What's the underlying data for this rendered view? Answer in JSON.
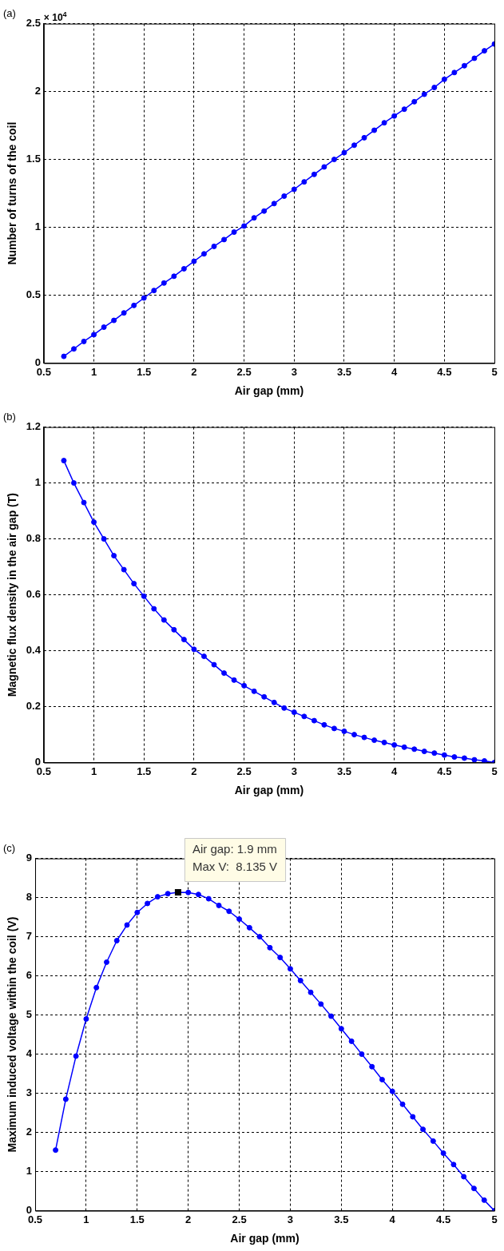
{
  "chart_data": [
    {
      "type": "line",
      "title": "(a)",
      "xlabel": "Air gap (mm)",
      "ylabel": "Number of turns of the coil",
      "annotations": [
        "× 10$^{4}$"
      ],
      "xlim": [
        0.5,
        5
      ],
      "xticks": [
        0.5,
        1,
        1.5,
        2,
        2.5,
        3,
        3.5,
        4,
        4.5,
        5
      ],
      "ylim": [
        0,
        2.5
      ],
      "yticks": [
        0,
        0.5,
        1,
        1.5,
        2,
        2.5
      ],
      "grid": true,
      "marker": "circle",
      "line_style": "solid",
      "legend": false,
      "x": [
        0.7,
        0.8,
        0.9,
        1.0,
        1.1,
        1.2,
        1.3,
        1.4,
        1.5,
        1.6,
        1.7,
        1.8,
        1.9,
        2.0,
        2.1,
        2.2,
        2.3,
        2.4,
        2.5,
        2.6,
        2.7,
        2.8,
        2.9,
        3.0,
        3.1,
        3.2,
        3.3,
        3.4,
        3.5,
        3.6,
        3.7,
        3.8,
        3.9,
        4.0,
        4.1,
        4.2,
        4.3,
        4.4,
        4.5,
        4.6,
        4.7,
        4.8,
        4.9,
        5.0
      ],
      "series": [
        {
          "color": "#0000ff",
          "values": [
            0.05,
            0.105,
            0.16,
            0.21,
            0.265,
            0.315,
            0.37,
            0.425,
            0.48,
            0.535,
            0.59,
            0.64,
            0.695,
            0.75,
            0.805,
            0.86,
            0.91,
            0.965,
            1.01,
            1.07,
            1.12,
            1.175,
            1.23,
            1.28,
            1.335,
            1.39,
            1.445,
            1.5,
            1.55,
            1.605,
            1.66,
            1.715,
            1.77,
            1.82,
            1.87,
            1.925,
            1.98,
            2.03,
            2.09,
            2.14,
            2.19,
            2.245,
            2.3,
            2.35
          ]
        }
      ]
    },
    {
      "type": "line",
      "title": "(b)",
      "xlabel": "Air gap (mm)",
      "ylabel": "Magnetic flux density in the air gap (T)",
      "xlim": [
        0.5,
        5
      ],
      "xticks": [
        0.5,
        1,
        1.5,
        2,
        2.5,
        3,
        3.5,
        4,
        4.5,
        5
      ],
      "ylim": [
        0,
        1.2
      ],
      "yticks": [
        0,
        0.2,
        0.4,
        0.6,
        0.8,
        1,
        1.2
      ],
      "grid": true,
      "marker": "circle",
      "line_style": "solid",
      "legend": false,
      "x": [
        0.7,
        0.8,
        0.9,
        1.0,
        1.1,
        1.2,
        1.3,
        1.4,
        1.5,
        1.6,
        1.7,
        1.8,
        1.9,
        2.0,
        2.1,
        2.2,
        2.3,
        2.4,
        2.5,
        2.6,
        2.7,
        2.8,
        2.9,
        3.0,
        3.1,
        3.2,
        3.3,
        3.4,
        3.5,
        3.6,
        3.7,
        3.8,
        3.9,
        4.0,
        4.1,
        4.2,
        4.3,
        4.4,
        4.5,
        4.6,
        4.7,
        4.8,
        4.9,
        5.0
      ],
      "series": [
        {
          "color": "#0000ff",
          "values": [
            1.08,
            1.0,
            0.93,
            0.86,
            0.8,
            0.74,
            0.69,
            0.64,
            0.595,
            0.55,
            0.51,
            0.475,
            0.44,
            0.405,
            0.38,
            0.35,
            0.32,
            0.295,
            0.275,
            0.255,
            0.235,
            0.215,
            0.195,
            0.18,
            0.165,
            0.15,
            0.135,
            0.122,
            0.112,
            0.1,
            0.09,
            0.08,
            0.072,
            0.063,
            0.055,
            0.048,
            0.04,
            0.034,
            0.027,
            0.02,
            0.016,
            0.01,
            0.006,
            0
          ]
        }
      ]
    },
    {
      "type": "line",
      "title": "(c)",
      "xlabel": "Air gap (mm)",
      "ylabel": "Maximum induced voltage within the coil (V)",
      "annotations": [
        {
          "text": "Air gap: 1.9 mm\nMax V:  8.135 V",
          "x": 1.9,
          "y": 8.135
        }
      ],
      "xlim": [
        0.5,
        5
      ],
      "xticks": [
        0.5,
        1,
        1.5,
        2,
        2.5,
        3,
        3.5,
        4,
        4.5,
        5
      ],
      "ylim": [
        0,
        9
      ],
      "yticks": [
        0,
        1,
        2,
        3,
        4,
        5,
        6,
        7,
        8,
        9
      ],
      "grid": true,
      "marker": "circle",
      "line_style": "solid",
      "legend": false,
      "x": [
        0.7,
        0.8,
        0.9,
        1.0,
        1.1,
        1.2,
        1.3,
        1.4,
        1.5,
        1.6,
        1.7,
        1.8,
        1.9,
        2.0,
        2.1,
        2.2,
        2.3,
        2.4,
        2.5,
        2.6,
        2.7,
        2.8,
        2.9,
        3.0,
        3.1,
        3.2,
        3.3,
        3.4,
        3.5,
        3.6,
        3.7,
        3.8,
        3.9,
        4.0,
        4.1,
        4.2,
        4.3,
        4.4,
        4.5,
        4.6,
        4.7,
        4.8,
        4.9,
        5.0
      ],
      "series": [
        {
          "color": "#0000ff",
          "values": [
            1.55,
            2.85,
            3.95,
            4.9,
            5.7,
            6.35,
            6.9,
            7.3,
            7.62,
            7.85,
            8.02,
            8.1,
            8.135,
            8.13,
            8.08,
            7.97,
            7.8,
            7.65,
            7.45,
            7.23,
            7.0,
            6.72,
            6.47,
            6.18,
            5.88,
            5.58,
            5.28,
            4.97,
            4.65,
            4.33,
            4.0,
            3.68,
            3.35,
            3.05,
            2.72,
            2.4,
            2.08,
            1.78,
            1.47,
            1.18,
            0.87,
            0.57,
            0.27,
            0
          ]
        }
      ]
    }
  ]
}
